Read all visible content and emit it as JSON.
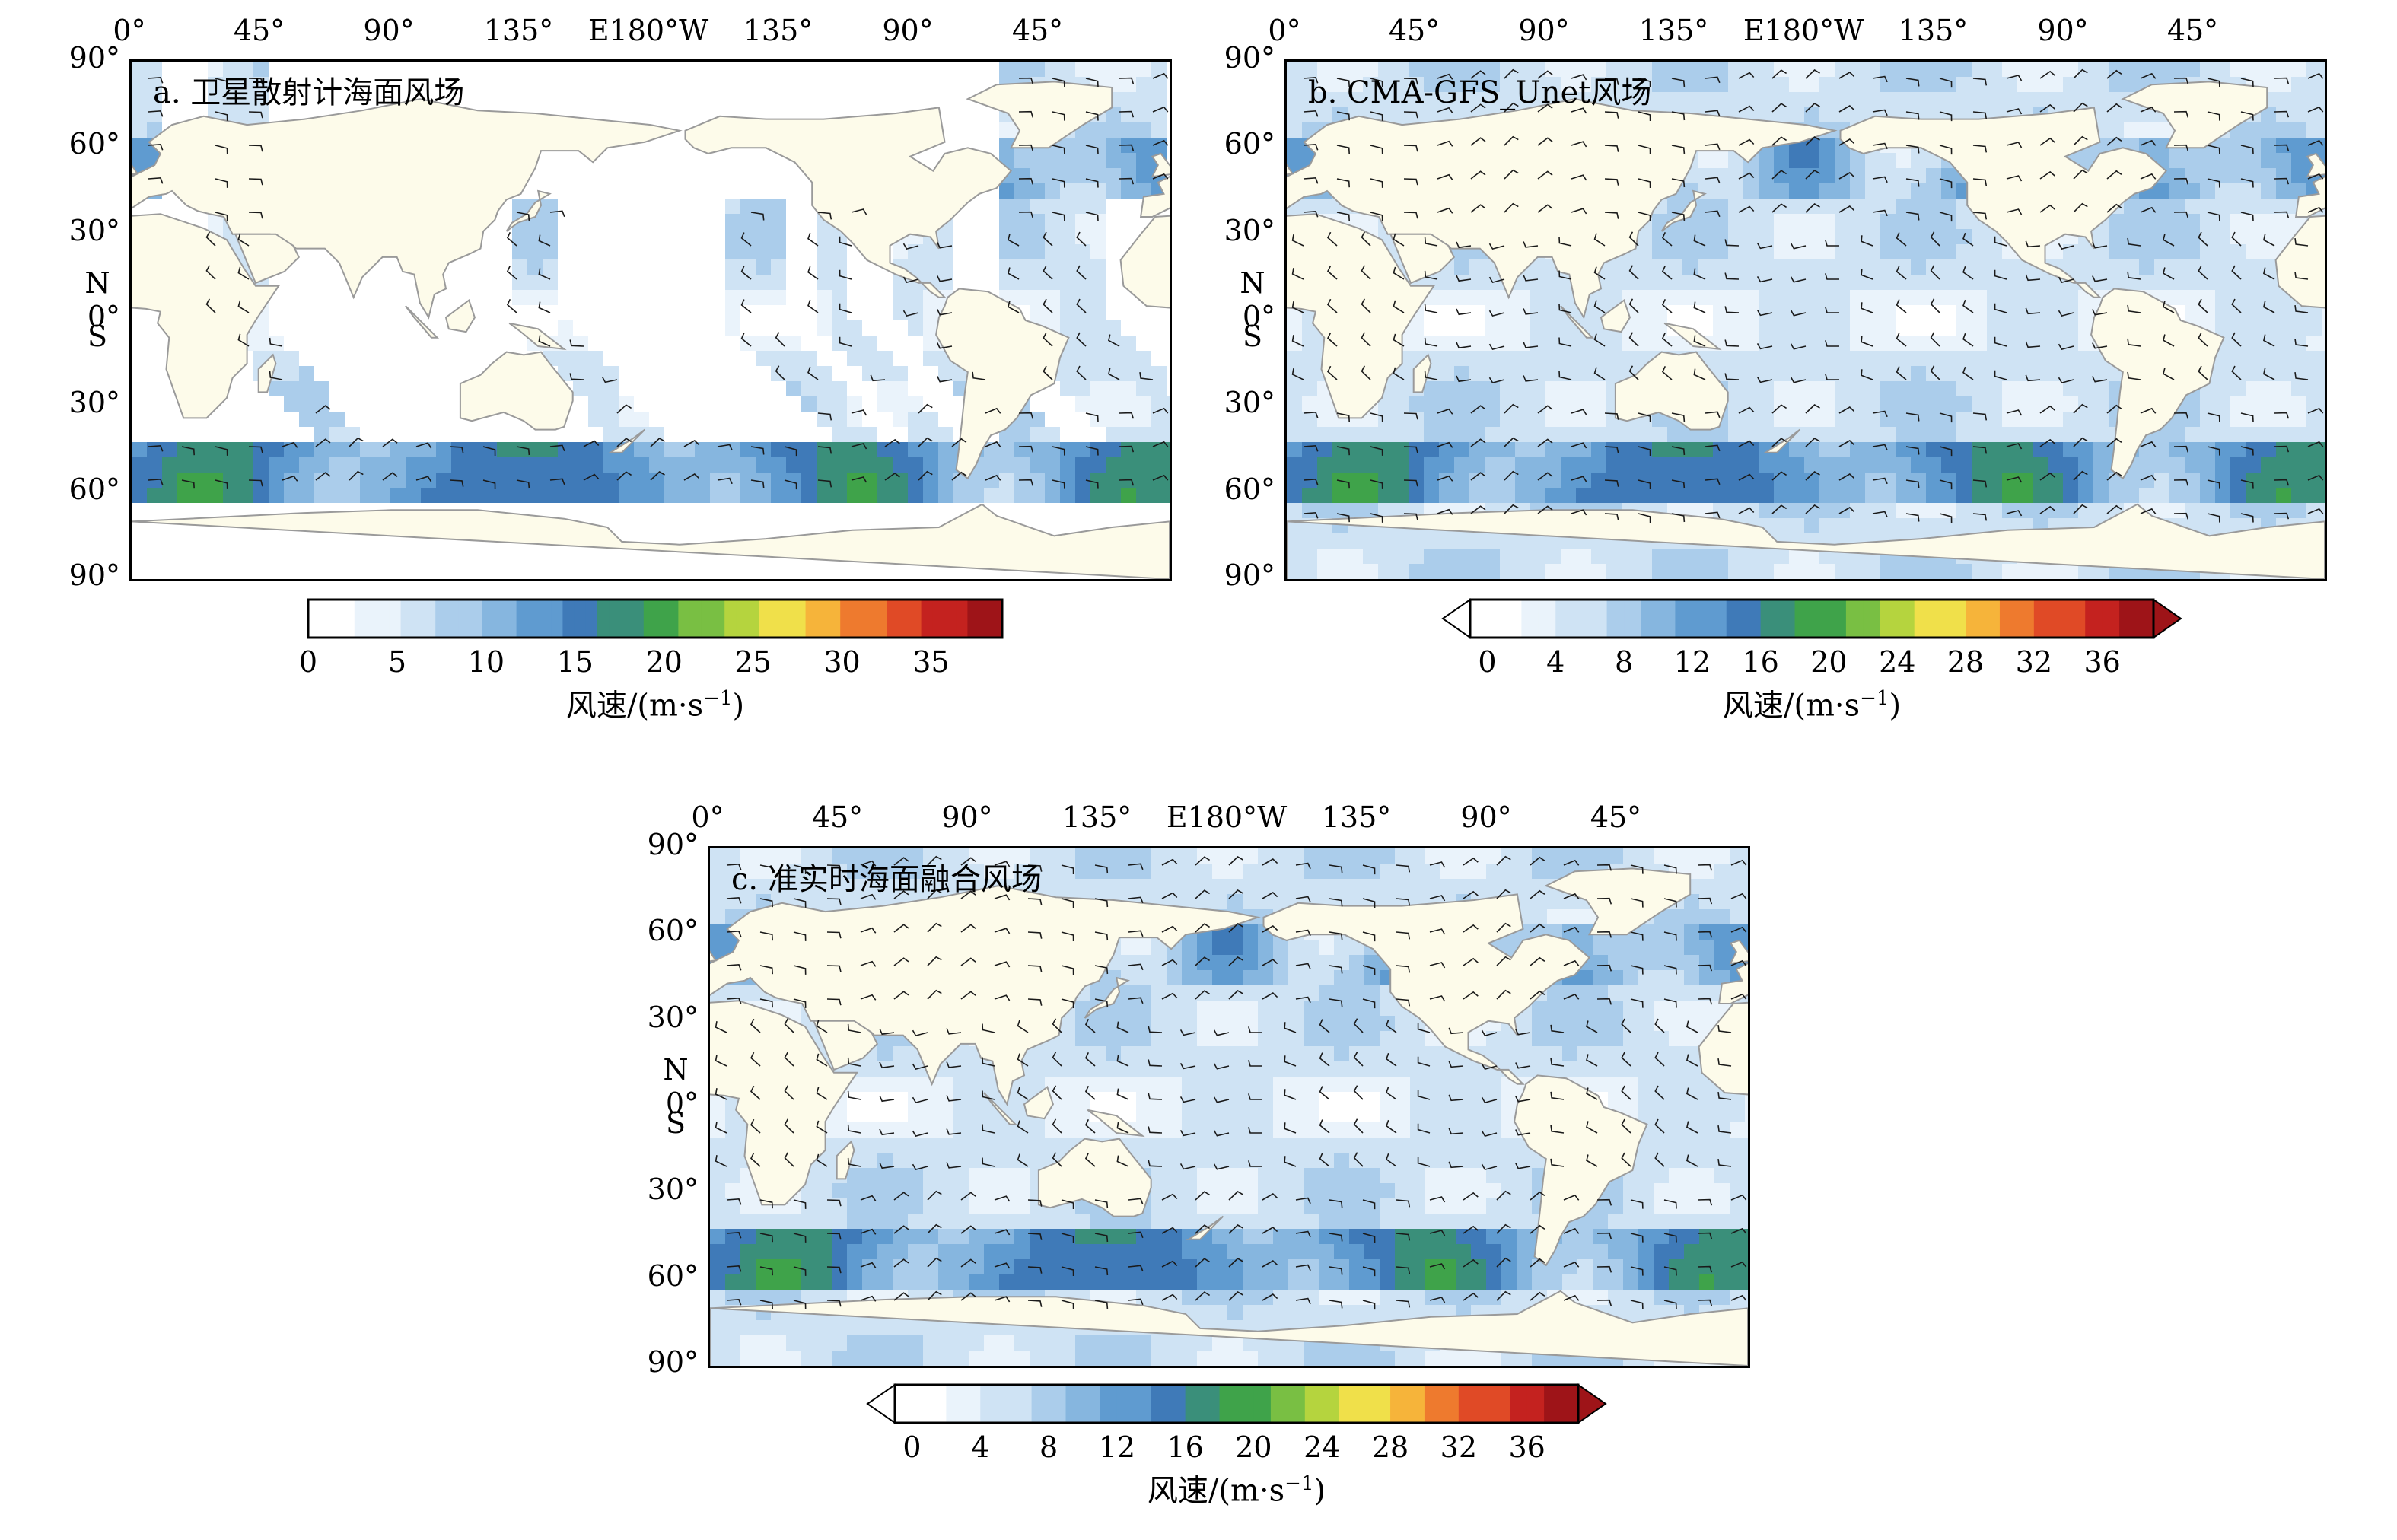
{
  "lon_labels": [
    "0°",
    "45°",
    "90°",
    "135°",
    "E180°W",
    "135°",
    "90°",
    "45°"
  ],
  "lat_labels": [
    "90°",
    "60°",
    "30°",
    "0°",
    "30°",
    "60°",
    "90°"
  ],
  "hemisphere_labels": {
    "north": "N",
    "south": "S"
  },
  "panels": [
    {
      "id": "a",
      "title": "a. 卫星散射计海面风场",
      "swath_coverage": true
    },
    {
      "id": "b",
      "title": "b. CMA-GFS_Unet风场",
      "swath_coverage": false
    },
    {
      "id": "c",
      "title": "c. 准实时海面融合风场",
      "swath_coverage": false
    }
  ],
  "colorbars": [
    {
      "id": "cb-a",
      "ticks": [
        "0",
        "5",
        "10",
        "15",
        "20",
        "25",
        "30",
        "35"
      ],
      "min": 0,
      "max": 39,
      "extend": false
    },
    {
      "id": "cb-b",
      "ticks": [
        "0",
        "4",
        "8",
        "12",
        "16",
        "20",
        "24",
        "28",
        "32",
        "36"
      ],
      "min": -1,
      "max": 39,
      "extend": true
    },
    {
      "id": "cb-c",
      "ticks": [
        "0",
        "4",
        "8",
        "12",
        "16",
        "20",
        "24",
        "28",
        "32",
        "36"
      ],
      "min": -1,
      "max": 39,
      "extend": true
    }
  ],
  "colorbar_label": {
    "prefix": "风速/(m·s",
    "exponent": "−1",
    "suffix": ")"
  },
  "colors": {
    "land": "#fdfbea",
    "ocean_low": "#e6f1fa",
    "ocean_mid": "#6aa3d5",
    "ocean_high": "#3f7ab8",
    "wind_strong": "#4aa84a",
    "coastline": "#9a9a9a",
    "barb": "#1a1a1a"
  },
  "colormap": [
    "#ffffff",
    "#eaf3fb",
    "#cfe3f4",
    "#abcdeb",
    "#86b6df",
    "#5f9bd0",
    "#3f7ab8",
    "#3a8f7a",
    "#3fa34a",
    "#79bf43",
    "#b5d43e",
    "#f0e04a",
    "#f6b43a",
    "#ee7a2e",
    "#e04a26",
    "#c4221f",
    "#9e1418"
  ]
}
